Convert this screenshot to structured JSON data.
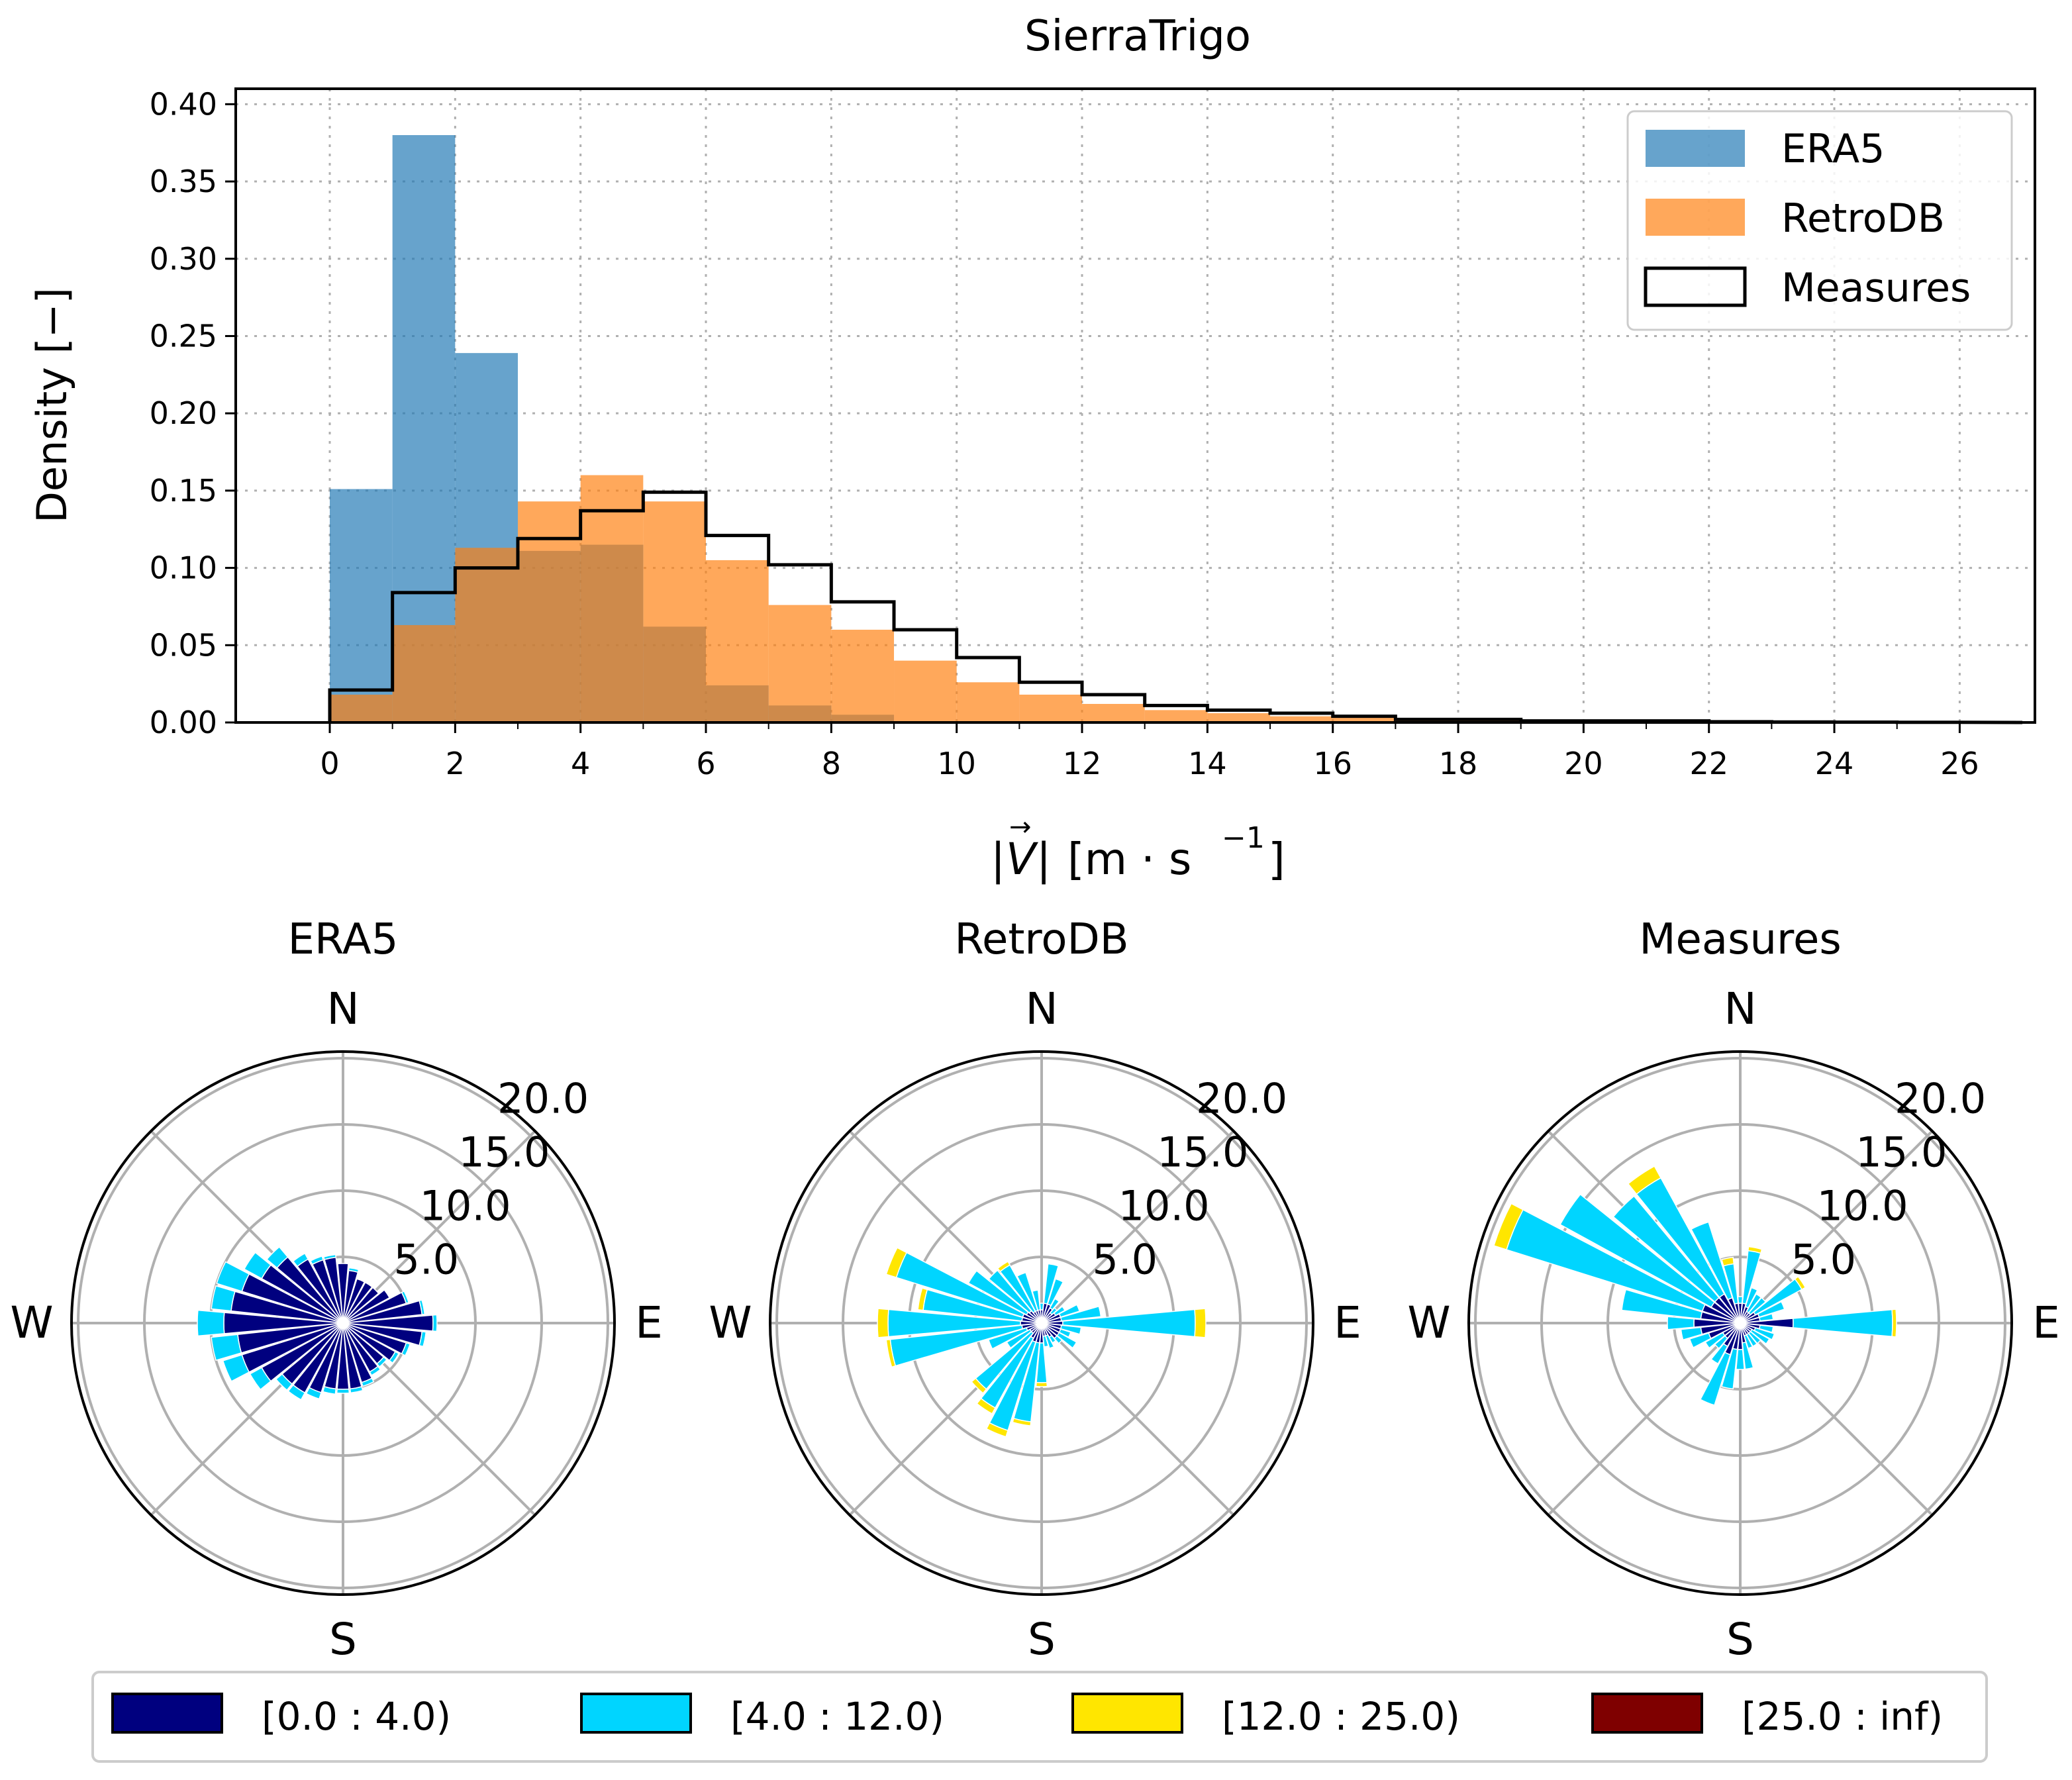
{
  "chart_data": [
    {
      "type": "bar",
      "title": "SierraTrigo",
      "xlabel": "|V| [m · s⁻¹]",
      "xlabel_parts": {
        "bar_left": "|",
        "vec": "V",
        "arrow": "→",
        "bar_right": "|",
        "unit": "[m · s",
        "exp": "−1",
        "close": "]"
      },
      "ylabel": "Density [−]",
      "xlim": [
        -1.5,
        27.2
      ],
      "ylim": [
        0,
        0.41
      ],
      "xticks": [
        "0",
        "2",
        "4",
        "6",
        "8",
        "10",
        "12",
        "14",
        "16",
        "18",
        "20",
        "22",
        "24",
        "26"
      ],
      "yticks": [
        "0.00",
        "0.05",
        "0.10",
        "0.15",
        "0.20",
        "0.25",
        "0.30",
        "0.35",
        "0.40"
      ],
      "grid": true,
      "legend_position": "top-right",
      "bin_edges": [
        0,
        1,
        2,
        3,
        4,
        5,
        6,
        7,
        8,
        9,
        10,
        11,
        12,
        13,
        14,
        15,
        16,
        17,
        18,
        19,
        20,
        21,
        22,
        23,
        24,
        25,
        26
      ],
      "series": [
        {
          "name": "ERA5",
          "style": "filled",
          "color": "#1f77b4",
          "alpha": 0.68,
          "values": [
            0.151,
            0.38,
            0.239,
            0.111,
            0.115,
            0.062,
            0.024,
            0.011,
            0.005,
            0,
            0,
            0,
            0,
            0,
            0,
            0,
            0,
            0,
            0,
            0,
            0,
            0,
            0,
            0,
            0,
            0
          ]
        },
        {
          "name": "RetroDB",
          "style": "filled",
          "color": "#ff7f0e",
          "alpha": 0.68,
          "values": [
            0.018,
            0.063,
            0.113,
            0.143,
            0.16,
            0.143,
            0.105,
            0.076,
            0.06,
            0.04,
            0.026,
            0.018,
            0.012,
            0.008,
            0.006,
            0.004,
            0.003,
            0.002,
            0.0015,
            0.001,
            0.001,
            0.0008,
            0.0005,
            0.0004,
            0.0003,
            0.0002
          ]
        },
        {
          "name": "Measures",
          "style": "step",
          "color": "#000000",
          "values": [
            0.021,
            0.084,
            0.1,
            0.119,
            0.137,
            0.149,
            0.121,
            0.102,
            0.078,
            0.06,
            0.042,
            0.026,
            0.018,
            0.011,
            0.008,
            0.006,
            0.004,
            0.002,
            0.002,
            0.001,
            0.001,
            0.001,
            0.0005,
            0.0003,
            0.0002,
            0.0001
          ]
        }
      ]
    },
    {
      "type": "windrose",
      "title": "ERA5",
      "directions": [
        "N",
        "E",
        "S",
        "W"
      ],
      "radial_ticks": [
        "5.0",
        "10.0",
        "15.0",
        "20.0"
      ],
      "rmax": 20.5,
      "sector_width_deg": 11.25,
      "bins": [
        "[0.0 : 4.0)",
        "[4.0 : 12.0)",
        "[12.0 : 25.0)",
        "[25.0 : inf)"
      ],
      "sectors": [
        {
          "angle": 0,
          "v": [
            4.5,
            0,
            0,
            0
          ]
        },
        {
          "angle": 11.25,
          "v": [
            4.0,
            0.2,
            0,
            0
          ]
        },
        {
          "angle": 22.5,
          "v": [
            3.5,
            0,
            0,
            0
          ]
        },
        {
          "angle": 33.75,
          "v": [
            3.5,
            0,
            0,
            0
          ]
        },
        {
          "angle": 45,
          "v": [
            3.5,
            0,
            0,
            0
          ]
        },
        {
          "angle": 56.25,
          "v": [
            4.0,
            0,
            0,
            0
          ]
        },
        {
          "angle": 67.5,
          "v": [
            5.0,
            0.2,
            0,
            0
          ]
        },
        {
          "angle": 78.75,
          "v": [
            6.0,
            0.2,
            0,
            0
          ]
        },
        {
          "angle": 90,
          "v": [
            6.8,
            0.3,
            0,
            0
          ]
        },
        {
          "angle": 101.25,
          "v": [
            6.0,
            0.3,
            0,
            0
          ]
        },
        {
          "angle": 112.5,
          "v": [
            5.0,
            0.3,
            0,
            0
          ]
        },
        {
          "angle": 123.75,
          "v": [
            4.5,
            0.3,
            0,
            0
          ]
        },
        {
          "angle": 135,
          "v": [
            4.0,
            0.3,
            0,
            0
          ]
        },
        {
          "angle": 146.25,
          "v": [
            4.2,
            0.3,
            0,
            0
          ]
        },
        {
          "angle": 157.5,
          "v": [
            4.7,
            0.3,
            0,
            0
          ]
        },
        {
          "angle": 168.75,
          "v": [
            5.0,
            0.3,
            0,
            0
          ]
        },
        {
          "angle": 180,
          "v": [
            5.0,
            0.3,
            0,
            0
          ]
        },
        {
          "angle": 191.25,
          "v": [
            5.0,
            0.4,
            0,
            0
          ]
        },
        {
          "angle": 202.5,
          "v": [
            5.5,
            0.5,
            0,
            0
          ]
        },
        {
          "angle": 213.75,
          "v": [
            6.0,
            0.6,
            0,
            0
          ]
        },
        {
          "angle": 225,
          "v": [
            6.0,
            0.6,
            0,
            0
          ]
        },
        {
          "angle": 236.25,
          "v": [
            7.0,
            1.0,
            0,
            0
          ]
        },
        {
          "angle": 247.5,
          "v": [
            8.0,
            1.5,
            0,
            0
          ]
        },
        {
          "angle": 258.75,
          "v": [
            8.0,
            2.0,
            0,
            0
          ]
        },
        {
          "angle": 270,
          "v": [
            9.0,
            2.0,
            0,
            0
          ]
        },
        {
          "angle": 281.25,
          "v": [
            8.5,
            1.5,
            0,
            0
          ]
        },
        {
          "angle": 292.5,
          "v": [
            8.0,
            2.0,
            0,
            0
          ]
        },
        {
          "angle": 303.75,
          "v": [
            7.0,
            1.5,
            0,
            0
          ]
        },
        {
          "angle": 315,
          "v": [
            6.5,
            1.0,
            0,
            0
          ]
        },
        {
          "angle": 326.25,
          "v": [
            5.5,
            0.5,
            0,
            0
          ]
        },
        {
          "angle": 337.5,
          "v": [
            5.0,
            0.3,
            0,
            0
          ]
        },
        {
          "angle": 348.75,
          "v": [
            5.0,
            0.2,
            0,
            0
          ]
        }
      ]
    },
    {
      "type": "windrose",
      "title": "RetroDB",
      "directions": [
        "N",
        "E",
        "S",
        "W"
      ],
      "radial_ticks": [
        "5.0",
        "10.0",
        "15.0",
        "20.0"
      ],
      "rmax": 20.5,
      "sector_width_deg": 11.25,
      "bins": [
        "[0.0 : 4.0)",
        "[4.0 : 12.0)",
        "[12.0 : 25.0)",
        "[25.0 : inf)"
      ],
      "sectors": [
        {
          "angle": 0,
          "v": [
            1.0,
            0.5,
            0,
            0
          ]
        },
        {
          "angle": 11.25,
          "v": [
            1.5,
            3.0,
            0,
            0
          ]
        },
        {
          "angle": 22.5,
          "v": [
            1.5,
            2.0,
            0,
            0
          ]
        },
        {
          "angle": 33.75,
          "v": [
            1.3,
            0.8,
            0,
            0
          ]
        },
        {
          "angle": 45,
          "v": [
            1.0,
            0.5,
            0,
            0
          ]
        },
        {
          "angle": 56.25,
          "v": [
            1.2,
            0.8,
            0,
            0
          ]
        },
        {
          "angle": 67.5,
          "v": [
            1.5,
            1.5,
            0,
            0
          ]
        },
        {
          "angle": 78.75,
          "v": [
            1.5,
            3.0,
            0,
            0
          ]
        },
        {
          "angle": 90,
          "v": [
            1.6,
            10.0,
            0.8,
            0
          ]
        },
        {
          "angle": 101.25,
          "v": [
            1.5,
            1.5,
            0,
            0
          ]
        },
        {
          "angle": 112.5,
          "v": [
            1.5,
            0.8,
            0,
            0
          ]
        },
        {
          "angle": 123.75,
          "v": [
            1.5,
            1.5,
            0,
            0
          ]
        },
        {
          "angle": 135,
          "v": [
            1.5,
            0.5,
            0,
            0
          ]
        },
        {
          "angle": 146.25,
          "v": [
            1.2,
            0.5,
            0,
            0
          ]
        },
        {
          "angle": 157.5,
          "v": [
            1.0,
            1.0,
            0,
            0
          ]
        },
        {
          "angle": 168.75,
          "v": [
            1.0,
            0.8,
            0,
            0
          ]
        },
        {
          "angle": 180,
          "v": [
            1.5,
            3.0,
            0.3,
            0
          ]
        },
        {
          "angle": 191.25,
          "v": [
            1.5,
            6.0,
            0.3,
            0
          ]
        },
        {
          "angle": 202.5,
          "v": [
            1.5,
            7.0,
            0.5,
            0
          ]
        },
        {
          "angle": 213.75,
          "v": [
            1.3,
            6.0,
            0.5,
            0
          ]
        },
        {
          "angle": 225,
          "v": [
            1.0,
            5.5,
            0.4,
            0
          ]
        },
        {
          "angle": 236.25,
          "v": [
            1.0,
            2.0,
            0,
            0
          ]
        },
        {
          "angle": 247.5,
          "v": [
            1.2,
            3.0,
            0,
            0
          ]
        },
        {
          "angle": 258.75,
          "v": [
            1.5,
            10.0,
            0.3,
            0
          ]
        },
        {
          "angle": 270,
          "v": [
            1.6,
            10.0,
            0.8,
            0
          ]
        },
        {
          "angle": 281.25,
          "v": [
            1.5,
            7.5,
            0.4,
            0
          ]
        },
        {
          "angle": 292.5,
          "v": [
            1.5,
            10.0,
            0.8,
            0
          ]
        },
        {
          "angle": 303.75,
          "v": [
            1.3,
            5.0,
            0,
            0
          ]
        },
        {
          "angle": 315,
          "v": [
            1.2,
            4.0,
            0,
            0
          ]
        },
        {
          "angle": 326.25,
          "v": [
            1.0,
            4.0,
            0.3,
            0
          ]
        },
        {
          "angle": 337.5,
          "v": [
            1.0,
            3.0,
            0,
            0
          ]
        },
        {
          "angle": 348.75,
          "v": [
            1.0,
            1.5,
            0,
            0
          ]
        }
      ]
    },
    {
      "type": "windrose",
      "title": "Measures",
      "directions": [
        "N",
        "E",
        "S",
        "W"
      ],
      "radial_ticks": [
        "5.0",
        "10.0",
        "15.0",
        "20.0"
      ],
      "rmax": 20.5,
      "sector_width_deg": 11.25,
      "bins": [
        "[0.0 : 4.0)",
        "[4.0 : 12.0)",
        "[12.0 : 25.0)",
        "[25.0 : inf)"
      ],
      "sectors": [
        {
          "angle": 0,
          "v": [
            1.5,
            0.5,
            0,
            0
          ]
        },
        {
          "angle": 11.25,
          "v": [
            1.5,
            4.0,
            0.3,
            0
          ]
        },
        {
          "angle": 22.5,
          "v": [
            1.3,
            1.5,
            0,
            0
          ]
        },
        {
          "angle": 33.75,
          "v": [
            1.0,
            1.5,
            0,
            0
          ]
        },
        {
          "angle": 45,
          "v": [
            1.0,
            1.5,
            0,
            0
          ]
        },
        {
          "angle": 56.25,
          "v": [
            1.3,
            4.0,
            0.3,
            0
          ]
        },
        {
          "angle": 67.5,
          "v": [
            1.5,
            2.0,
            0,
            0
          ]
        },
        {
          "angle": 78.75,
          "v": [
            1.5,
            1.0,
            0,
            0
          ]
        },
        {
          "angle": 90,
          "v": [
            4.0,
            7.5,
            0.3,
            0
          ]
        },
        {
          "angle": 101.25,
          "v": [
            1.5,
            1.0,
            0,
            0
          ]
        },
        {
          "angle": 112.5,
          "v": [
            1.2,
            1.5,
            0,
            0
          ]
        },
        {
          "angle": 123.75,
          "v": [
            1.0,
            1.5,
            0,
            0
          ]
        },
        {
          "angle": 135,
          "v": [
            1.0,
            1.0,
            0,
            0
          ]
        },
        {
          "angle": 146.25,
          "v": [
            1.0,
            1.0,
            0,
            0
          ]
        },
        {
          "angle": 157.5,
          "v": [
            1.0,
            1.0,
            0,
            0
          ]
        },
        {
          "angle": 168.75,
          "v": [
            1.5,
            2.0,
            0,
            0
          ]
        },
        {
          "angle": 180,
          "v": [
            2.0,
            1.5,
            0,
            0
          ]
        },
        {
          "angle": 191.25,
          "v": [
            2.0,
            3.0,
            0,
            0
          ]
        },
        {
          "angle": 202.5,
          "v": [
            2.5,
            4.0,
            0,
            0
          ]
        },
        {
          "angle": 213.75,
          "v": [
            2.0,
            1.5,
            0,
            0
          ]
        },
        {
          "angle": 225,
          "v": [
            1.5,
            1.0,
            0,
            0
          ]
        },
        {
          "angle": 236.25,
          "v": [
            1.5,
            1.5,
            0,
            0
          ]
        },
        {
          "angle": 247.5,
          "v": [
            2.5,
            1.5,
            0,
            0
          ]
        },
        {
          "angle": 258.75,
          "v": [
            3.0,
            1.5,
            0,
            0
          ]
        },
        {
          "angle": 270,
          "v": [
            3.5,
            2.0,
            0,
            0
          ]
        },
        {
          "angle": 281.25,
          "v": [
            3.0,
            6.0,
            0,
            0
          ]
        },
        {
          "angle": 292.5,
          "v": [
            3.0,
            15.5,
            1.0,
            0
          ]
        },
        {
          "angle": 303.75,
          "v": [
            2.5,
            13.0,
            0,
            0
          ]
        },
        {
          "angle": 315,
          "v": [
            2.5,
            10.0,
            0,
            0
          ]
        },
        {
          "angle": 326.25,
          "v": [
            2.5,
            10.0,
            1.0,
            0
          ]
        },
        {
          "angle": 337.5,
          "v": [
            2.0,
            6.0,
            0,
            0
          ]
        },
        {
          "angle": 348.75,
          "v": [
            1.5,
            3.0,
            0.5,
            0
          ]
        }
      ]
    }
  ],
  "bin_colors": [
    "#00007f",
    "#00d5ff",
    "#ffe600",
    "#7f0000"
  ],
  "legend": {
    "items": [
      "[0.0 : 4.0)",
      "[4.0 : 12.0)",
      "[12.0 : 25.0)",
      "[25.0 : inf)"
    ]
  }
}
